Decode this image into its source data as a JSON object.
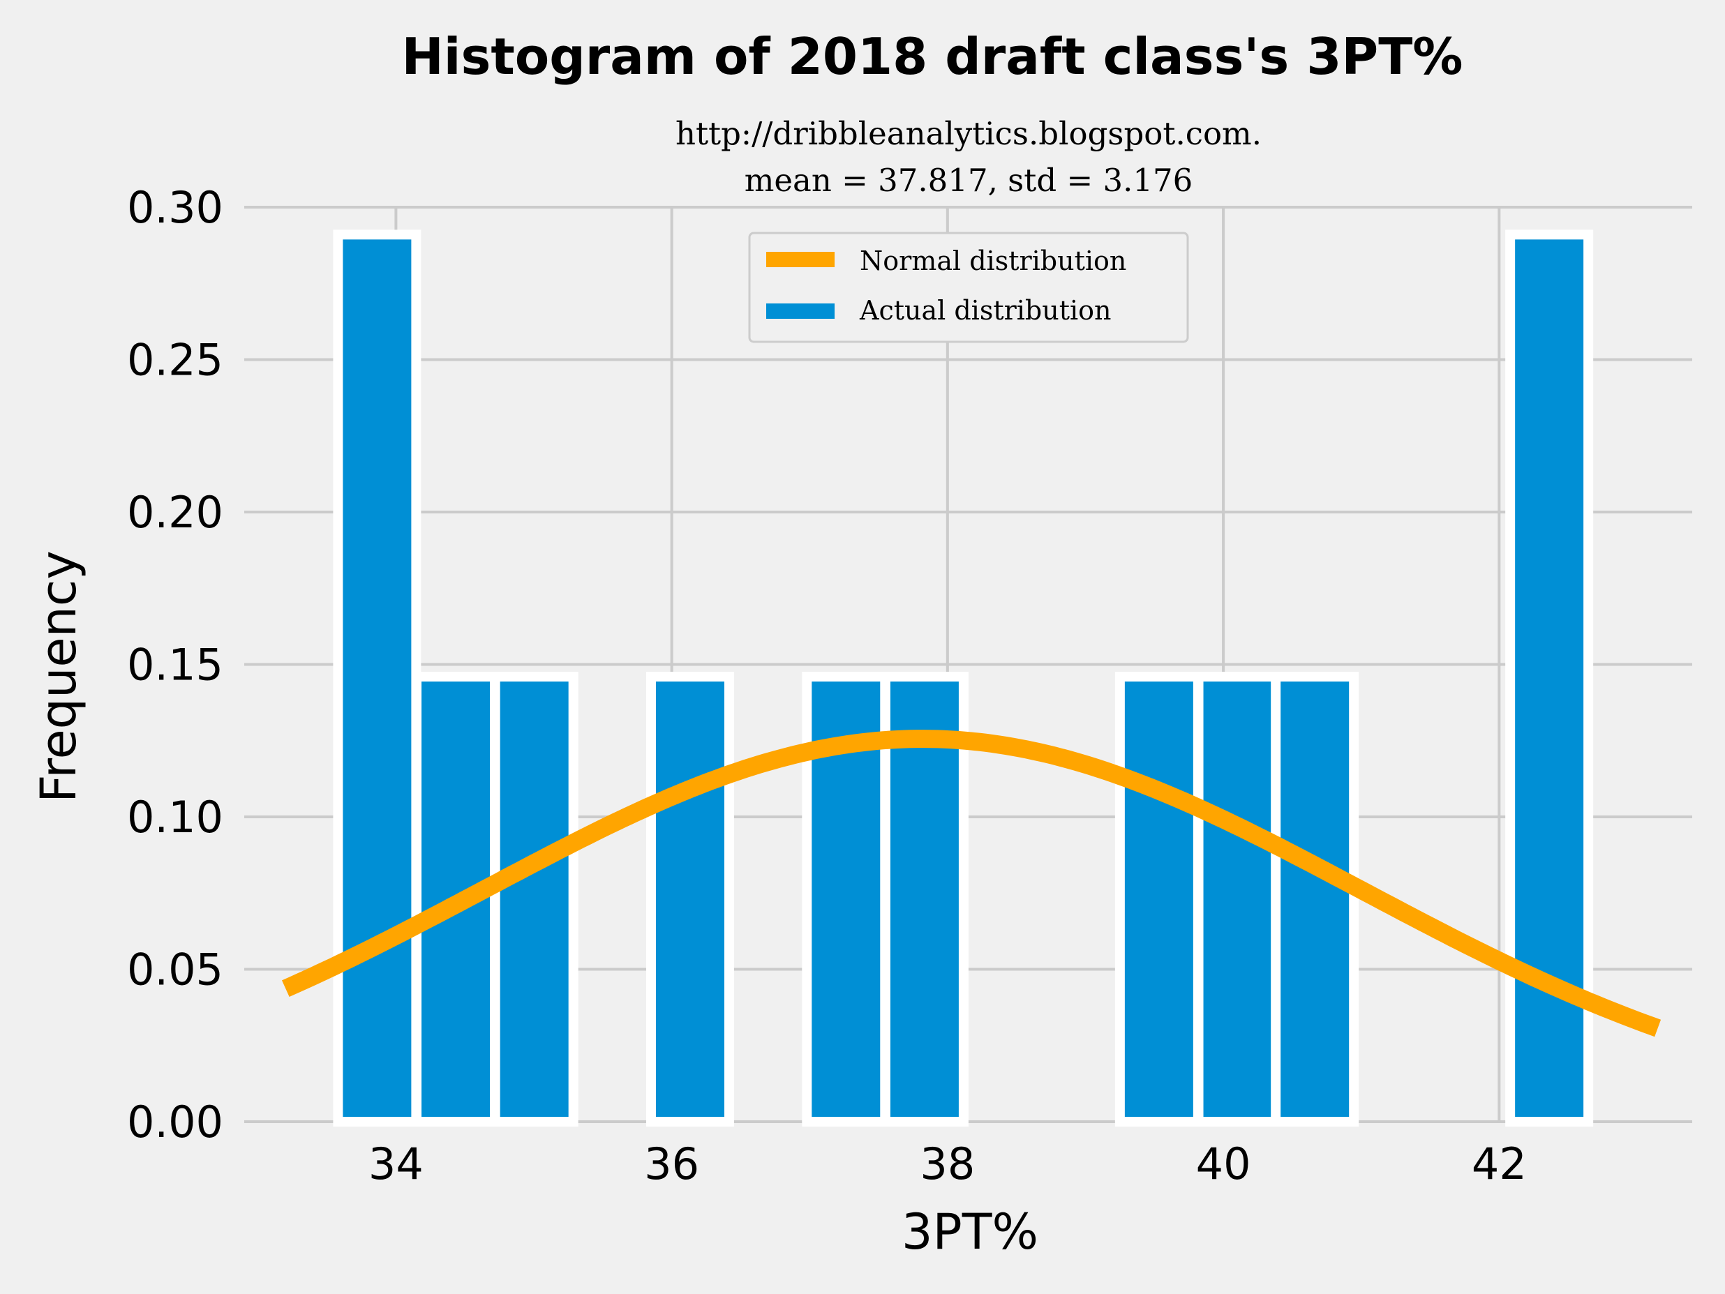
{
  "chart_data": {
    "type": "bar",
    "title": "Histogram of 2018 draft class's 3PT%",
    "subtitle_lines": [
      "http://dribbleanalytics.blogspot.com.",
      "mean = 37.817, std = 3.176"
    ],
    "xlabel": "3PT%",
    "ylabel": "Frequency",
    "xlim": [
      32.9,
      43.4
    ],
    "ylim": [
      0,
      0.3
    ],
    "xticks": [
      34,
      36,
      38,
      40,
      42
    ],
    "yticks": [
      0.0,
      0.05,
      0.1,
      0.15,
      0.2,
      0.25,
      0.3
    ],
    "grid": true,
    "legend_placement": "upper-center",
    "legend": [
      "Normal distribution",
      "Actual distribution"
    ],
    "bin_width": 0.5667,
    "series": [
      {
        "name": "Actual distribution",
        "kind": "histogram",
        "color": "#008fd5",
        "bin_starts": [
          33.58,
          34.15,
          34.72,
          35.28,
          35.85,
          36.42,
          36.98,
          37.55,
          38.12,
          38.68,
          39.25,
          39.82,
          40.38,
          40.95,
          41.52,
          42.08
        ],
        "values": [
          0.291,
          0.146,
          0.146,
          0.0,
          0.146,
          0.0,
          0.146,
          0.146,
          0.0,
          0.0,
          0.146,
          0.146,
          0.146,
          0.0,
          0.0,
          0.291
        ]
      },
      {
        "name": "Normal distribution",
        "kind": "line",
        "color": "#ffa500",
        "mean": 37.817,
        "std": 3.176,
        "x_range": [
          33.2,
          43.15
        ]
      }
    ]
  }
}
